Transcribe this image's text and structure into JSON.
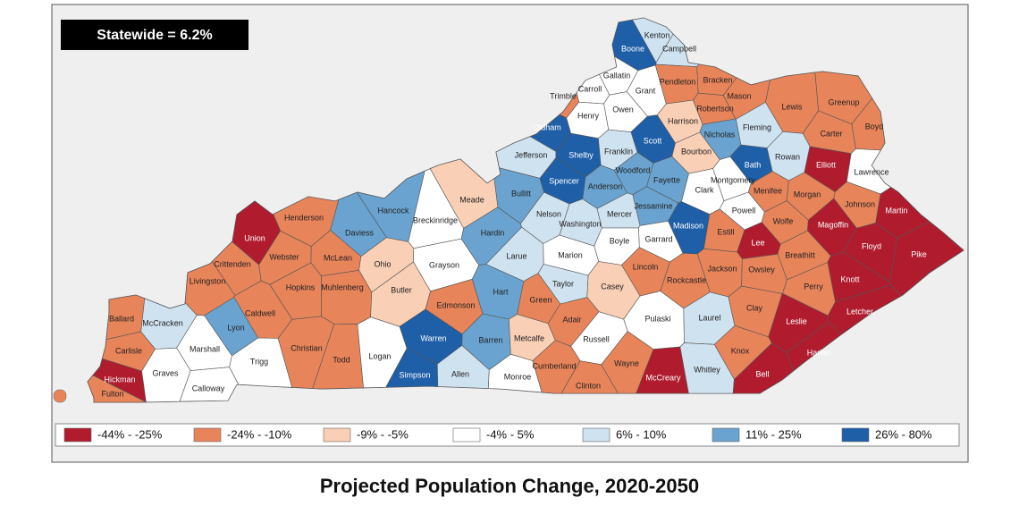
{
  "header": {
    "title": "Statewide = 6.2%"
  },
  "caption": "Projected Population Change, 2020-2050",
  "legend": [
    {
      "label": "-44% - -25%",
      "color": "#b01c2e"
    },
    {
      "label": "-24% - -10%",
      "color": "#e8845a"
    },
    {
      "label": "-9% - -5%",
      "color": "#f9cfb5"
    },
    {
      "label": "-4% - 5%",
      "color": "#ffffff"
    },
    {
      "label": "6% - 10%",
      "color": "#cfe2f0"
    },
    {
      "label": "11% - 25%",
      "color": "#6aa3cf"
    },
    {
      "label": "26% - 80%",
      "color": "#1f5fa8"
    }
  ],
  "map": {
    "counties": [
      {
        "name": "Kenton",
        "color": "#cfe2f0"
      },
      {
        "name": "Boone",
        "color": "#1f5fa8"
      },
      {
        "name": "Campbell",
        "color": "#cfe2f0"
      },
      {
        "name": "Gallatin",
        "color": "#ffffff"
      },
      {
        "name": "Carroll",
        "color": "#ffffff"
      },
      {
        "name": "Trimble",
        "color": "#e8845a"
      },
      {
        "name": "Grant",
        "color": "#ffffff"
      },
      {
        "name": "Pendleton",
        "color": "#e8845a"
      },
      {
        "name": "Bracken",
        "color": "#e8845a"
      },
      {
        "name": "Mason",
        "color": "#e8845a"
      },
      {
        "name": "Robertson",
        "color": "#e8845a"
      },
      {
        "name": "Lewis",
        "color": "#e8845a"
      },
      {
        "name": "Greenup",
        "color": "#e8845a"
      },
      {
        "name": "Boyd",
        "color": "#e8845a"
      },
      {
        "name": "Henry",
        "color": "#ffffff"
      },
      {
        "name": "Owen",
        "color": "#ffffff"
      },
      {
        "name": "Harrison",
        "color": "#f9cfb5"
      },
      {
        "name": "Nicholas",
        "color": "#6aa3cf"
      },
      {
        "name": "Fleming",
        "color": "#cfe2f0"
      },
      {
        "name": "Carter",
        "color": "#e8845a"
      },
      {
        "name": "Oldham",
        "color": "#1f5fa8"
      },
      {
        "name": "Scott",
        "color": "#1f5fa8"
      },
      {
        "name": "Bourbon",
        "color": "#f9cfb5"
      },
      {
        "name": "Bath",
        "color": "#1f5fa8"
      },
      {
        "name": "Rowan",
        "color": "#cfe2f0"
      },
      {
        "name": "Elliott",
        "color": "#b01c2e"
      },
      {
        "name": "Lawrence",
        "color": "#ffffff"
      },
      {
        "name": "Jefferson",
        "color": "#cfe2f0"
      },
      {
        "name": "Shelby",
        "color": "#1f5fa8"
      },
      {
        "name": "Franklin",
        "color": "#cfe2f0"
      },
      {
        "name": "Woodford",
        "color": "#6aa3cf"
      },
      {
        "name": "Montgomery",
        "color": "#ffffff"
      },
      {
        "name": "Clark",
        "color": "#ffffff"
      },
      {
        "name": "Fayette",
        "color": "#6aa3cf"
      },
      {
        "name": "Menifee",
        "color": "#e8845a"
      },
      {
        "name": "Morgan",
        "color": "#e8845a"
      },
      {
        "name": "Johnson",
        "color": "#e8845a"
      },
      {
        "name": "Martin",
        "color": "#b01c2e"
      },
      {
        "name": "Spencer",
        "color": "#1f5fa8"
      },
      {
        "name": "Anderson",
        "color": "#6aa3cf"
      },
      {
        "name": "Bullitt",
        "color": "#6aa3cf"
      },
      {
        "name": "Jessamine",
        "color": "#6aa3cf"
      },
      {
        "name": "Powell",
        "color": "#ffffff"
      },
      {
        "name": "Wolfe",
        "color": "#e8845a"
      },
      {
        "name": "Magoffin",
        "color": "#b01c2e"
      },
      {
        "name": "Floyd",
        "color": "#b01c2e"
      },
      {
        "name": "Pike",
        "color": "#b01c2e"
      },
      {
        "name": "Henderson",
        "color": "#e8845a"
      },
      {
        "name": "Union",
        "color": "#b01c2e"
      },
      {
        "name": "Hancock",
        "color": "#6aa3cf"
      },
      {
        "name": "Breckinridge",
        "color": "#ffffff"
      },
      {
        "name": "Meade",
        "color": "#f9cfb5"
      },
      {
        "name": "Daviess",
        "color": "#6aa3cf"
      },
      {
        "name": "Hardin",
        "color": "#6aa3cf"
      },
      {
        "name": "Nelson",
        "color": "#cfe2f0"
      },
      {
        "name": "Washington",
        "color": "#cfe2f0"
      },
      {
        "name": "Mercer",
        "color": "#cfe2f0"
      },
      {
        "name": "Madison",
        "color": "#1f5fa8"
      },
      {
        "name": "Estill",
        "color": "#e8845a"
      },
      {
        "name": "Lee",
        "color": "#b01c2e"
      },
      {
        "name": "Garrard",
        "color": "#ffffff"
      },
      {
        "name": "Boyle",
        "color": "#ffffff"
      },
      {
        "name": "Breathitt",
        "color": "#e8845a"
      },
      {
        "name": "Knott",
        "color": "#b01c2e"
      },
      {
        "name": "Larue",
        "color": "#cfe2f0"
      },
      {
        "name": "Marion",
        "color": "#ffffff"
      },
      {
        "name": "Webster",
        "color": "#e8845a"
      },
      {
        "name": "McLean",
        "color": "#e8845a"
      },
      {
        "name": "Ohio",
        "color": "#f9cfb5"
      },
      {
        "name": "Grayson",
        "color": "#ffffff"
      },
      {
        "name": "Lincoln",
        "color": "#e8845a"
      },
      {
        "name": "Rockcastle",
        "color": "#e8845a"
      },
      {
        "name": "Jackson",
        "color": "#e8845a"
      },
      {
        "name": "Owsley",
        "color": "#e8845a"
      },
      {
        "name": "Perry",
        "color": "#e8845a"
      },
      {
        "name": "Crittenden",
        "color": "#e8845a"
      },
      {
        "name": "Livingston",
        "color": "#e8845a"
      },
      {
        "name": "Hopkins",
        "color": "#e8845a"
      },
      {
        "name": "Muhlenberg",
        "color": "#e8845a"
      },
      {
        "name": "Butler",
        "color": "#f9cfb5"
      },
      {
        "name": "Edmonson",
        "color": "#e8845a"
      },
      {
        "name": "Hart",
        "color": "#6aa3cf"
      },
      {
        "name": "Green",
        "color": "#e8845a"
      },
      {
        "name": "Taylor",
        "color": "#cfe2f0"
      },
      {
        "name": "Casey",
        "color": "#f9cfb5"
      },
      {
        "name": "Pulaski",
        "color": "#ffffff"
      },
      {
        "name": "Laurel",
        "color": "#cfe2f0"
      },
      {
        "name": "Clay",
        "color": "#e8845a"
      },
      {
        "name": "Leslie",
        "color": "#b01c2e"
      },
      {
        "name": "Letcher",
        "color": "#b01c2e"
      },
      {
        "name": "Caldwell",
        "color": "#e8845a"
      },
      {
        "name": "Lyon",
        "color": "#6aa3cf"
      },
      {
        "name": "Ballard",
        "color": "#e8845a"
      },
      {
        "name": "McCracken",
        "color": "#cfe2f0"
      },
      {
        "name": "Adair",
        "color": "#e8845a"
      },
      {
        "name": "Christian",
        "color": "#e8845a"
      },
      {
        "name": "Todd",
        "color": "#e8845a"
      },
      {
        "name": "Logan",
        "color": "#ffffff"
      },
      {
        "name": "Warren",
        "color": "#1f5fa8"
      },
      {
        "name": "Barren",
        "color": "#6aa3cf"
      },
      {
        "name": "Metcalfe",
        "color": "#f9cfb5"
      },
      {
        "name": "Russell",
        "color": "#ffffff"
      },
      {
        "name": "Marshall",
        "color": "#ffffff"
      },
      {
        "name": "Trigg",
        "color": "#ffffff"
      },
      {
        "name": "Carlisle",
        "color": "#e8845a"
      },
      {
        "name": "Knox",
        "color": "#e8845a"
      },
      {
        "name": "Harlan",
        "color": "#b01c2e"
      },
      {
        "name": "Hickman",
        "color": "#b01c2e"
      },
      {
        "name": "Graves",
        "color": "#ffffff"
      },
      {
        "name": "Calloway",
        "color": "#ffffff"
      },
      {
        "name": "Fulton",
        "color": "#e8845a"
      },
      {
        "name": "Simpson",
        "color": "#1f5fa8"
      },
      {
        "name": "Allen",
        "color": "#cfe2f0"
      },
      {
        "name": "Monroe",
        "color": "#ffffff"
      },
      {
        "name": "Cumberland",
        "color": "#e8845a"
      },
      {
        "name": "Clinton",
        "color": "#e8845a"
      },
      {
        "name": "Wayne",
        "color": "#e8845a"
      },
      {
        "name": "McCreary",
        "color": "#b01c2e"
      },
      {
        "name": "Whitley",
        "color": "#cfe2f0"
      },
      {
        "name": "Bell",
        "color": "#b01c2e"
      }
    ]
  }
}
